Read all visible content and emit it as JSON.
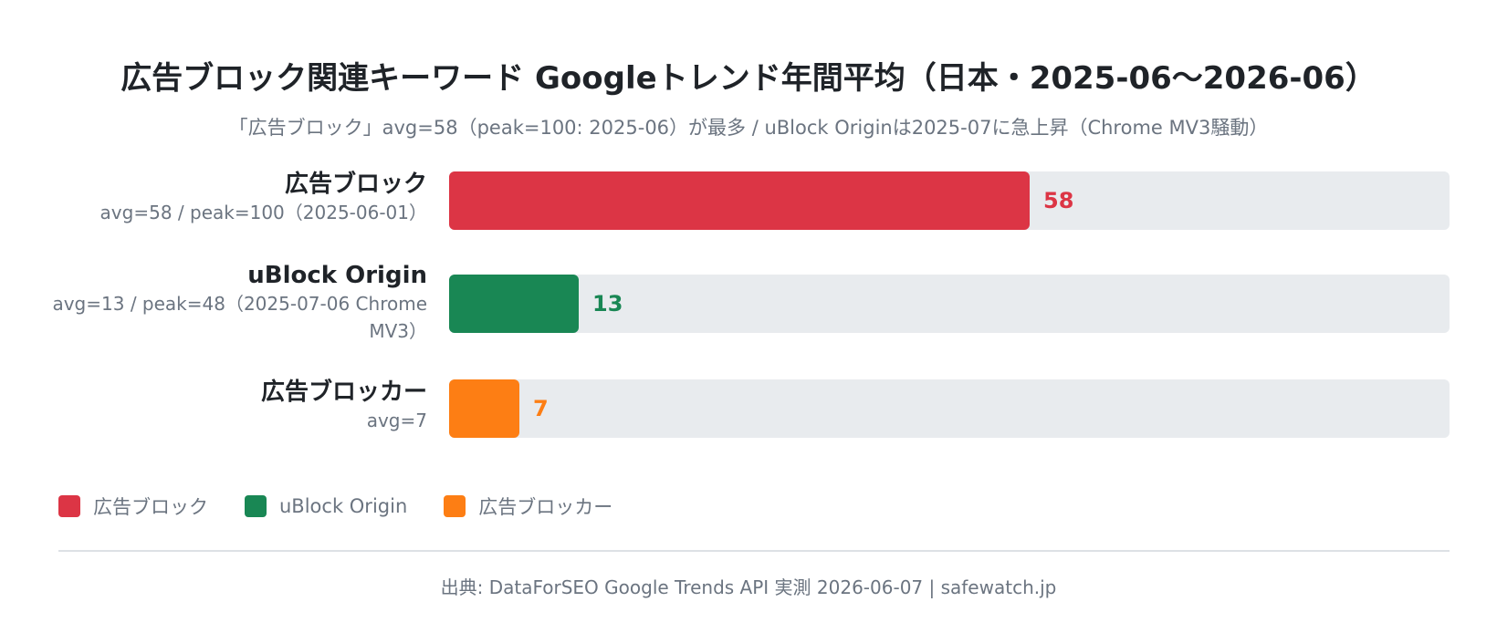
{
  "chart_data": {
    "type": "bar",
    "orientation": "horizontal",
    "title": "広告ブロック関連キーワード Googleトレンド年間平均（日本・2025-06〜2026-06）",
    "subtitle": "「広告ブロック」avg=58（peak=100: 2025-06）が最多 / uBlock Originは2025-07に急上昇（Chrome MV3騒動）",
    "xlim": [
      0,
      100
    ],
    "categories": [
      "広告ブロック",
      "uBlock Origin",
      "広告ブロッカー"
    ],
    "values": [
      58,
      13,
      7
    ],
    "notes": [
      "avg=58 / peak=100（2025-06-01）",
      "avg=13 / peak=48（2025-07-06 Chrome MV3）",
      "avg=7"
    ],
    "colors": [
      "#dc3545",
      "#198754",
      "#fd7e14"
    ],
    "legend": {
      "position": "bottom-left",
      "entries": [
        "広告ブロック",
        "uBlock Origin",
        "広告ブロッカー"
      ]
    },
    "grid": false
  },
  "footer": {
    "source": "出典: DataForSEO Google Trends API 実測 2026-06-07 | safewatch.jp"
  }
}
